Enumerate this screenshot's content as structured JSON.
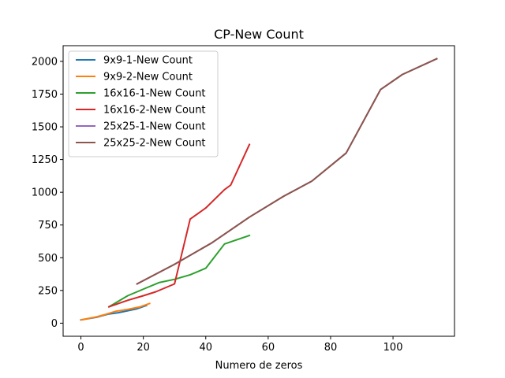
{
  "chart_data": {
    "type": "line",
    "title": "CP-New Count",
    "xlabel": "Numero de zeros",
    "ylabel": "",
    "xlim": [
      -5.7,
      119.7
    ],
    "ylim": [
      -100,
      2120
    ],
    "xticks": [
      0,
      20,
      40,
      60,
      80,
      100
    ],
    "yticks": [
      0,
      250,
      500,
      750,
      1000,
      1250,
      1500,
      1750,
      2000
    ],
    "grid": false,
    "legend_position": "top-left",
    "series": [
      {
        "name": "9x9-1-New Count",
        "color": "#1f77b4",
        "x": [
          0,
          5,
          9,
          12,
          15,
          18,
          21
        ],
        "y": [
          25,
          45,
          70,
          80,
          95,
          110,
          135
        ]
      },
      {
        "name": "9x9-2-New Count",
        "color": "#ff7f0e",
        "x": [
          0,
          5,
          8,
          11,
          15,
          19,
          22
        ],
        "y": [
          25,
          48,
          68,
          90,
          105,
          125,
          150
        ]
      },
      {
        "name": "16x16-1-New Count",
        "color": "#2ca02c",
        "x": [
          9,
          15,
          21,
          25,
          30,
          35,
          40,
          46,
          54
        ],
        "y": [
          125,
          210,
          270,
          310,
          335,
          370,
          420,
          605,
          670
        ]
      },
      {
        "name": "16x16-2-New Count",
        "color": "#d62728",
        "x": [
          9,
          15,
          20,
          24,
          30,
          35,
          40,
          46,
          48,
          54
        ],
        "y": [
          125,
          175,
          210,
          240,
          300,
          795,
          880,
          1020,
          1055,
          1365
        ]
      },
      {
        "name": "25x25-1-New Count",
        "color": "#9467bd",
        "x": [
          18,
          30,
          42,
          54,
          65,
          74,
          85,
          96,
          103,
          114
        ],
        "y": [
          300,
          450,
          615,
          810,
          970,
          1085,
          1300,
          1785,
          1900,
          2020
        ]
      },
      {
        "name": "25x25-2-New Count",
        "color": "#8c564b",
        "x": [
          18,
          30,
          42,
          54,
          65,
          74,
          85,
          96,
          103,
          114
        ],
        "y": [
          300,
          450,
          615,
          810,
          970,
          1085,
          1300,
          1785,
          1900,
          2020
        ]
      }
    ]
  }
}
